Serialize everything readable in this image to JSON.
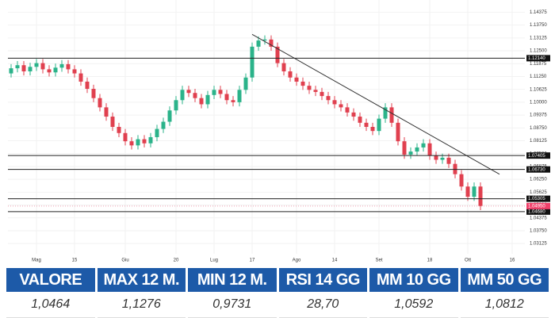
{
  "chart_data": {
    "type": "candlestick",
    "categories": [
      null,
      null,
      null,
      null,
      "Mag",
      null,
      null,
      null,
      null,
      null,
      "15",
      null,
      null,
      null,
      null,
      null,
      null,
      null,
      "Giu",
      null,
      null,
      null,
      null,
      null,
      null,
      null,
      "20",
      null,
      null,
      null,
      null,
      null,
      "Lug",
      null,
      null,
      null,
      null,
      null,
      "17",
      null,
      null,
      null,
      null,
      null,
      null,
      "Ago",
      null,
      null,
      null,
      null,
      null,
      "14",
      null,
      null,
      null,
      null,
      null,
      null,
      "Set",
      null,
      null,
      null,
      null,
      null,
      null,
      null,
      "18",
      null,
      null,
      null,
      null,
      null,
      "Ott",
      null,
      null,
      null,
      null,
      null,
      null,
      "16"
    ],
    "open": [
      1.114,
      1.1165,
      1.118,
      1.115,
      1.1172,
      1.119,
      1.116,
      1.1145,
      1.1168,
      1.1185,
      1.116,
      1.114,
      1.11,
      1.1065,
      1.102,
      1.0975,
      1.093,
      1.088,
      1.085,
      1.081,
      1.079,
      1.082,
      1.08,
      1.083,
      1.087,
      1.0905,
      1.096,
      1.101,
      1.106,
      1.1045,
      1.102,
      1.099,
      1.1035,
      1.106,
      1.104,
      1.101,
      1.1,
      1.106,
      1.112,
      1.127,
      1.13,
      1.1305,
      1.127,
      1.119,
      1.115,
      1.112,
      1.11,
      1.108,
      1.106,
      1.105,
      1.103,
      1.101,
      1.099,
      1.0975,
      1.095,
      1.093,
      1.09,
      1.088,
      1.086,
      1.092,
      1.0975,
      1.09,
      1.081,
      1.0745,
      1.076,
      1.078,
      1.08,
      1.074,
      1.072,
      1.073,
      1.07,
      1.065,
      1.059,
      1.054,
      1.059,
      null,
      null,
      null,
      null,
      null
    ],
    "high": [
      1.1185,
      1.12,
      1.12,
      1.1192,
      1.121,
      1.121,
      1.118,
      1.1188,
      1.1205,
      1.1205,
      1.118,
      1.116,
      1.112,
      1.1085,
      1.104,
      1.0995,
      1.095,
      1.09,
      1.087,
      1.083,
      1.084,
      1.084,
      1.085,
      1.089,
      1.0925,
      1.098,
      1.103,
      1.108,
      1.108,
      1.1065,
      1.104,
      1.1055,
      1.108,
      1.108,
      1.106,
      1.103,
      1.108,
      1.114,
      1.129,
      1.132,
      1.1325,
      1.1325,
      1.129,
      1.121,
      1.117,
      1.114,
      1.112,
      1.11,
      1.108,
      1.107,
      1.105,
      1.103,
      1.101,
      1.0995,
      1.097,
      1.095,
      1.092,
      1.09,
      1.094,
      1.0995,
      1.0995,
      1.092,
      1.083,
      1.078,
      1.08,
      1.082,
      1.082,
      1.076,
      1.075,
      1.075,
      1.072,
      1.067,
      1.061,
      1.061,
      1.061,
      null,
      null,
      null,
      null,
      null
    ],
    "low": [
      1.112,
      1.1145,
      1.113,
      1.113,
      1.1152,
      1.114,
      1.1125,
      1.1125,
      1.1148,
      1.114,
      1.112,
      1.108,
      1.1045,
      1.1,
      1.0955,
      1.091,
      1.086,
      1.083,
      1.079,
      1.077,
      1.077,
      1.078,
      1.078,
      1.081,
      1.085,
      1.0885,
      1.094,
      1.099,
      1.1025,
      1.1,
      1.097,
      1.097,
      1.1015,
      1.102,
      1.099,
      1.098,
      1.098,
      1.104,
      1.11,
      1.125,
      1.128,
      1.125,
      1.117,
      1.113,
      1.11,
      1.108,
      1.106,
      1.104,
      1.103,
      1.101,
      1.099,
      1.097,
      1.0955,
      1.093,
      1.091,
      1.088,
      1.086,
      1.084,
      1.084,
      1.09,
      1.088,
      1.079,
      1.0725,
      1.0725,
      1.074,
      1.076,
      1.072,
      1.07,
      1.07,
      1.068,
      1.063,
      1.057,
      1.052,
      1.052,
      1.0475,
      null,
      null,
      null,
      null,
      null
    ],
    "close": [
      1.1165,
      1.118,
      1.115,
      1.1172,
      1.119,
      1.116,
      1.1145,
      1.1168,
      1.1185,
      1.116,
      1.114,
      1.11,
      1.1065,
      1.102,
      1.0975,
      1.093,
      1.088,
      1.085,
      1.081,
      1.079,
      1.082,
      1.08,
      1.083,
      1.087,
      1.0905,
      1.096,
      1.101,
      1.106,
      1.1045,
      1.102,
      1.099,
      1.1035,
      1.106,
      1.104,
      1.101,
      1.1,
      1.106,
      1.112,
      1.127,
      1.13,
      1.1305,
      1.127,
      1.119,
      1.115,
      1.112,
      1.11,
      1.108,
      1.106,
      1.105,
      1.103,
      1.101,
      1.099,
      1.0975,
      1.095,
      1.093,
      1.09,
      1.088,
      1.086,
      1.092,
      1.0975,
      1.09,
      1.081,
      1.0745,
      1.076,
      1.078,
      1.08,
      1.074,
      1.072,
      1.073,
      1.07,
      1.065,
      1.059,
      1.054,
      1.059,
      1.0495,
      null,
      null,
      null,
      null,
      null
    ],
    "up_color": "#2bb38a",
    "down_color": "#e0404f",
    "ylim": [
      1.0263,
      1.1497
    ],
    "yticks": [
      1.14375,
      {
        "value": 1.1375,
        "label": "1.13750"
      },
      1.13125,
      {
        "value": 1.125,
        "label": "1.12500"
      },
      1.11875,
      {
        "value": 1.1125,
        "label": "1.11250"
      },
      1.10625,
      {
        "value": 1.1,
        "label": "1.10000"
      },
      1.09375,
      {
        "value": 1.0875,
        "label": "1.08750"
      },
      1.08125,
      {
        "value": 1.075,
        "label": "1.07500"
      },
      1.06875,
      {
        "value": 1.0625,
        "label": "1.06250"
      },
      1.05625,
      {
        "value": 1.05,
        "label": "1.05000"
      },
      1.04375,
      {
        "value": 1.0375,
        "label": "1.03750"
      },
      1.03125
    ],
    "levels": [
      {
        "value": 1.1214,
        "label": "1.12140"
      },
      {
        "value": 1.07405,
        "label": "1.07405"
      },
      {
        "value": 1.0673,
        "label": "1.06730"
      },
      {
        "value": 1.05305,
        "label": "1.05305"
      },
      {
        "value": 1.0468,
        "label": "1.04680"
      }
    ],
    "last_price": {
      "value": 1.0495,
      "label": "1.04950"
    },
    "trendline": {
      "x": [
        38,
        77
      ],
      "values": [
        1.133,
        1.065
      ]
    },
    "grid": true
  },
  "table": {
    "header": [
      "VALORE",
      "MAX 12 M.",
      "MIN 12 M.",
      "RSI 14 GG",
      "MM 10 GG",
      "MM 50 GG"
    ],
    "row": [
      "1,0464",
      "1,1276",
      "0,9731",
      "28,70",
      "1,0592",
      "1,0812"
    ]
  }
}
